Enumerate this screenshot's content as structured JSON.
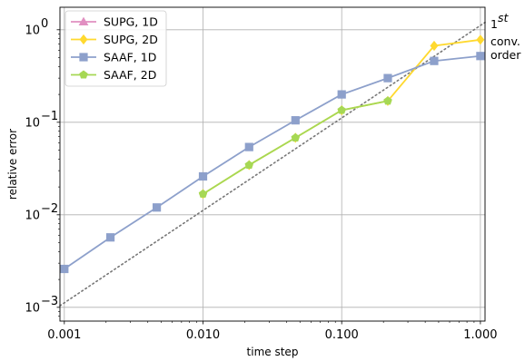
{
  "chart_data": {
    "type": "line",
    "xscale": "log",
    "yscale": "log",
    "xlim": [
      0.00093,
      1.08
    ],
    "ylim": [
      0.00071,
      1.75
    ],
    "xlabel": "time step",
    "ylabel": "relative error",
    "x_ticks": [
      0.001,
      0.01,
      0.1,
      1.0
    ],
    "x_tick_labels": [
      "0.001",
      "0.010",
      "0.100",
      "1.000"
    ],
    "y_ticks": [
      0.001,
      0.01,
      0.1,
      1.0
    ],
    "y_tick_bases": [
      "10",
      "10",
      "10",
      "10"
    ],
    "y_tick_exps": [
      "−3",
      "−2",
      "−1",
      "0"
    ],
    "grid": true,
    "legend_position": "top-left",
    "series": [
      {
        "name": "SUPG, 1D",
        "color": "#e18fc1",
        "marker": "triangle",
        "x": [],
        "y": []
      },
      {
        "name": "SUPG, 2D",
        "color": "#ffd92f",
        "marker": "diamond",
        "x": [
          0.01,
          0.0215,
          0.0464,
          0.1,
          0.215,
          0.464,
          1.0
        ],
        "y": [
          0.0168,
          0.0345,
          0.068,
          0.135,
          0.17,
          0.67,
          0.78
        ]
      },
      {
        "name": "SAAF, 1D",
        "color": "#8da0cb",
        "marker": "square",
        "x": [
          0.001,
          0.00215,
          0.00464,
          0.01,
          0.0215,
          0.0464,
          0.1,
          0.215,
          0.464,
          1.0
        ],
        "y": [
          0.0026,
          0.0057,
          0.012,
          0.026,
          0.054,
          0.105,
          0.2,
          0.3,
          0.46,
          0.52
        ]
      },
      {
        "name": "SAAF, 2D",
        "color": "#a6d854",
        "marker": "pentagon",
        "x": [
          0.01,
          0.0215,
          0.0464,
          0.1,
          0.215
        ],
        "y": [
          0.0168,
          0.0345,
          0.068,
          0.135,
          0.17
        ]
      }
    ],
    "reference_line": {
      "color": "#777777",
      "style": "dotted",
      "x": [
        0.00093,
        1.08
      ],
      "y": [
        0.00104,
        1.2
      ],
      "label_main": "1",
      "label_sup": "st",
      "label_line2": "conv.",
      "label_line3": "order"
    }
  }
}
